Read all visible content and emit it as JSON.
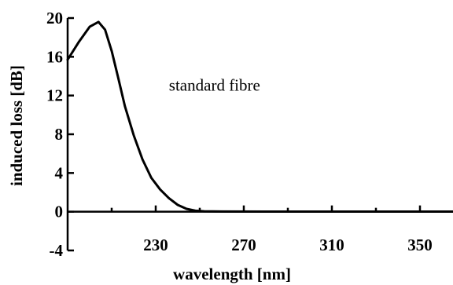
{
  "chart_data": {
    "type": "line",
    "title": "",
    "xlabel": "wavelength [nm]",
    "ylabel": "induced loss [dB]",
    "xlim": [
      190,
      365
    ],
    "ylim": [
      -4,
      20
    ],
    "x_ticks": [
      230,
      270,
      310,
      350
    ],
    "y_ticks": [
      -4,
      0,
      4,
      8,
      12,
      16,
      20
    ],
    "x_tick_labels": [
      "230",
      "270",
      "310",
      "350"
    ],
    "y_tick_labels": [
      "-4",
      "0",
      "4",
      "8",
      "12",
      "16",
      "20"
    ],
    "grid": false,
    "series": [
      {
        "values_x": [
          190,
          195,
          200,
          204,
          207,
          210,
          213,
          216,
          220,
          224,
          228,
          232,
          236,
          240,
          244,
          248,
          252,
          260,
          280,
          300,
          330,
          365
        ],
        "values_y": [
          15.7,
          17.5,
          19.1,
          19.6,
          18.8,
          16.6,
          13.8,
          10.9,
          7.9,
          5.4,
          3.5,
          2.3,
          1.4,
          0.7,
          0.3,
          0.1,
          0.05,
          0.02,
          0.01,
          0.01,
          0.01,
          0.01
        ]
      }
    ],
    "annotations": [
      {
        "text": "standard fibre",
        "x": 236,
        "y": 12.5
      }
    ],
    "colors": {
      "line": "#000000",
      "axis": "#000000",
      "background": "#ffffff"
    }
  }
}
